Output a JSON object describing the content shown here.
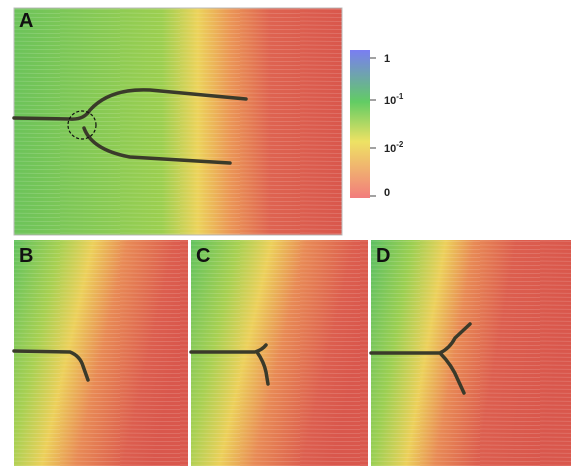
{
  "panels": [
    {
      "label": "A"
    },
    {
      "label": "B"
    },
    {
      "label": "C"
    },
    {
      "label": "D"
    }
  ],
  "colorbar": {
    "ticks": [
      {
        "text": "1"
      },
      {
        "base": "10",
        "exponent": "-1"
      },
      {
        "base": "10",
        "exponent": "-2"
      },
      {
        "text": "0"
      }
    ]
  }
}
